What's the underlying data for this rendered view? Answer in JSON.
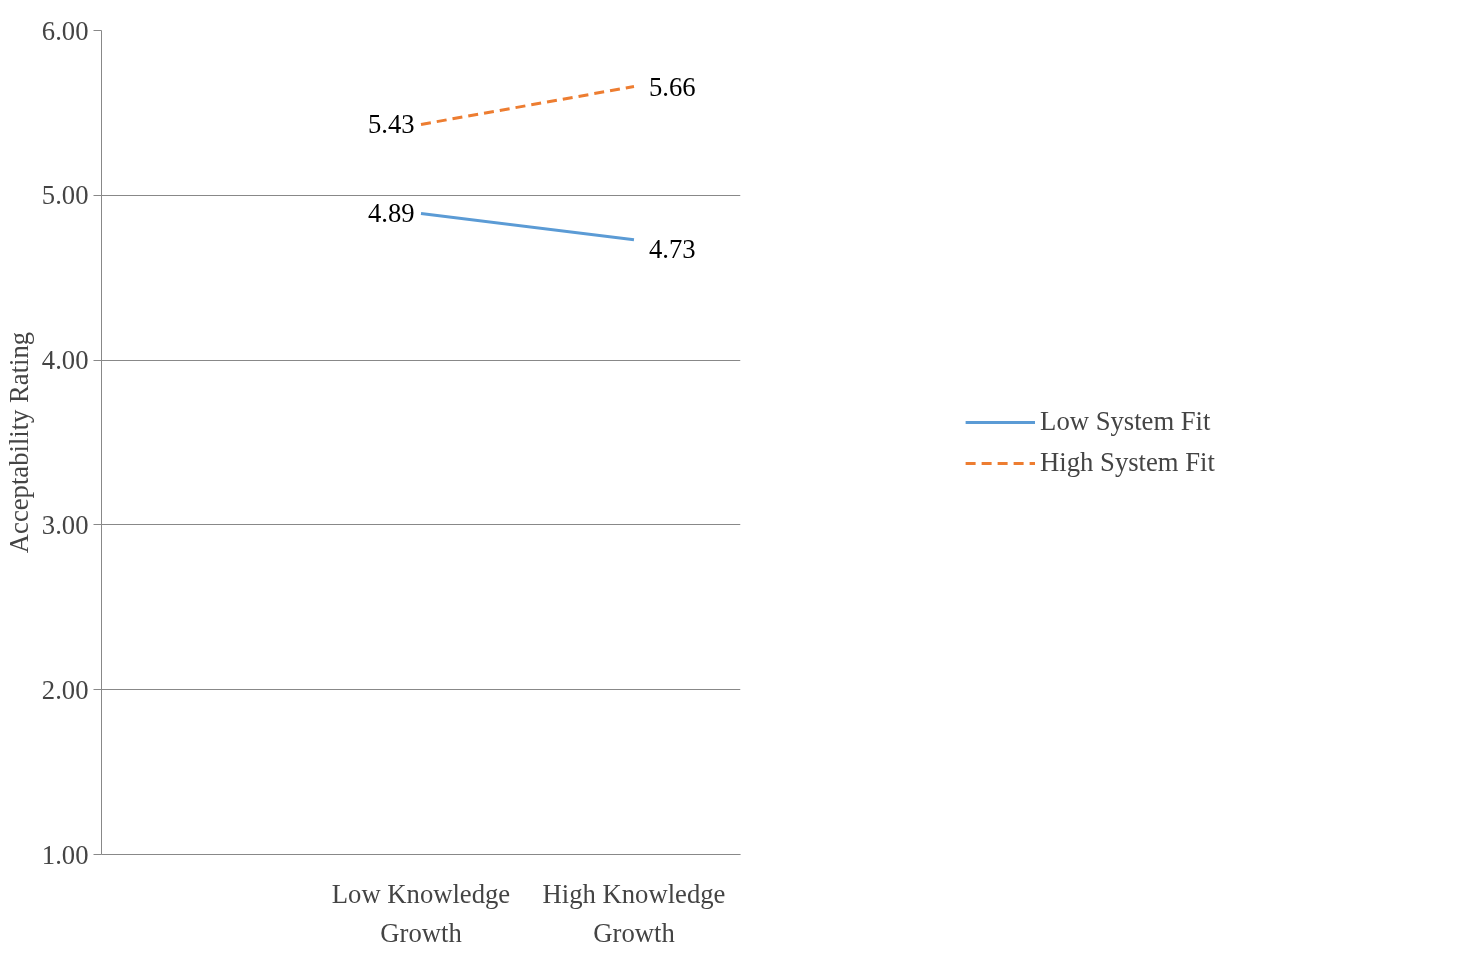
{
  "chart_data": {
    "type": "line",
    "ylabel": "Acceptability Rating",
    "categories": [
      null,
      "Low Knowledge Growth",
      "High Knowledge Growth"
    ],
    "series": [
      {
        "name": "Low System Fit",
        "color": "#5b9bd5",
        "line_style": "solid",
        "values": [
          null,
          4.89,
          4.73
        ]
      },
      {
        "name": "High System Fit",
        "color": "#ed7d31",
        "line_style": "dashed",
        "values": [
          null,
          5.43,
          5.66
        ]
      }
    ],
    "ylim": [
      1,
      6
    ],
    "yticks": [
      {
        "value": 1,
        "label": "1.00"
      },
      {
        "value": 2,
        "label": "2.00"
      },
      {
        "value": 3,
        "label": "3.00"
      },
      {
        "value": 4,
        "label": "4.00"
      },
      {
        "value": 5,
        "label": "5.00"
      },
      {
        "value": 6,
        "label": "6.00"
      }
    ],
    "grid": "y",
    "legend": "right",
    "data_labels": true
  }
}
